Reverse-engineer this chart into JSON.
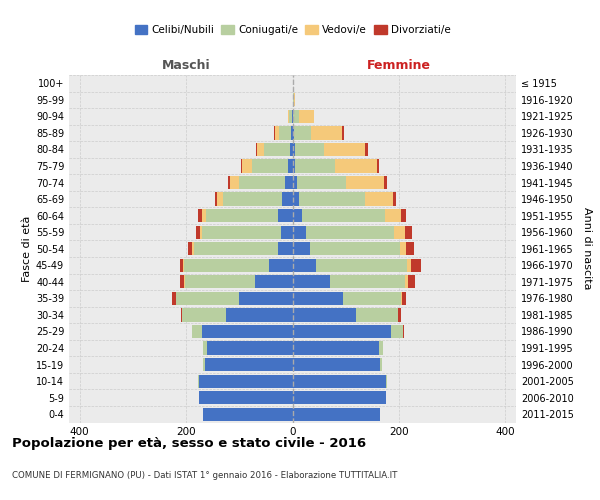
{
  "age_groups": [
    "100+",
    "95-99",
    "90-94",
    "85-89",
    "80-84",
    "75-79",
    "70-74",
    "65-69",
    "60-64",
    "55-59",
    "50-54",
    "45-49",
    "40-44",
    "35-39",
    "30-34",
    "25-29",
    "20-24",
    "15-19",
    "10-14",
    "5-9",
    "0-4"
  ],
  "birth_years": [
    "≤ 1915",
    "1916-1920",
    "1921-1925",
    "1926-1930",
    "1931-1935",
    "1936-1940",
    "1941-1945",
    "1946-1950",
    "1951-1955",
    "1956-1960",
    "1961-1965",
    "1966-1970",
    "1971-1975",
    "1976-1980",
    "1981-1985",
    "1986-1990",
    "1991-1995",
    "1996-2000",
    "2001-2005",
    "2006-2010",
    "2011-2015"
  ],
  "colors": {
    "celibe": "#4472c4",
    "coniugato": "#b8cfa0",
    "vedovo": "#f5c97a",
    "divorziato": "#c0392b"
  },
  "maschi": {
    "celibe": [
      0,
      0,
      1,
      3,
      5,
      8,
      15,
      20,
      28,
      22,
      28,
      45,
      70,
      100,
      125,
      170,
      160,
      165,
      175,
      175,
      168
    ],
    "coniugato": [
      0,
      0,
      5,
      22,
      48,
      68,
      85,
      110,
      135,
      148,
      158,
      158,
      132,
      118,
      82,
      18,
      8,
      3,
      2,
      0,
      0
    ],
    "vedovo": [
      0,
      0,
      2,
      8,
      14,
      18,
      18,
      12,
      7,
      4,
      3,
      2,
      2,
      1,
      0,
      0,
      0,
      0,
      0,
      0,
      0
    ],
    "divorziato": [
      0,
      0,
      0,
      2,
      2,
      3,
      4,
      4,
      8,
      8,
      8,
      7,
      8,
      7,
      2,
      0,
      0,
      0,
      0,
      0,
      0
    ]
  },
  "femmine": {
    "celibe": [
      0,
      1,
      1,
      3,
      4,
      5,
      8,
      12,
      18,
      25,
      32,
      45,
      70,
      95,
      120,
      185,
      162,
      165,
      175,
      175,
      165
    ],
    "coniugato": [
      0,
      1,
      12,
      32,
      55,
      75,
      92,
      125,
      155,
      165,
      170,
      170,
      142,
      108,
      78,
      22,
      8,
      3,
      2,
      0,
      0
    ],
    "vedovo": [
      0,
      2,
      28,
      58,
      78,
      78,
      72,
      52,
      30,
      22,
      12,
      8,
      5,
      2,
      1,
      0,
      0,
      0,
      0,
      0,
      0
    ],
    "divorziato": [
      0,
      0,
      0,
      3,
      4,
      5,
      5,
      5,
      10,
      12,
      14,
      18,
      14,
      8,
      4,
      2,
      0,
      0,
      0,
      0,
      0
    ]
  },
  "title": "Popolazione per età, sesso e stato civile - 2016",
  "subtitle": "COMUNE DI FERMIGNANO (PU) - Dati ISTAT 1° gennaio 2016 - Elaborazione TUTTITALIA.IT",
  "header_left": "Maschi",
  "header_right": "Femmine",
  "ylabel_left": "Fasce di età",
  "ylabel_right": "Anni di nascita",
  "xlim": 420,
  "xticks": [
    -400,
    -200,
    0,
    200,
    400
  ],
  "legend_labels": [
    "Celibi/Nubili",
    "Coniugati/e",
    "Vedovi/e",
    "Divorziati/e"
  ],
  "bg_color": "#ebebeb",
  "grid_color": "#cccccc",
  "bar_height": 0.8
}
